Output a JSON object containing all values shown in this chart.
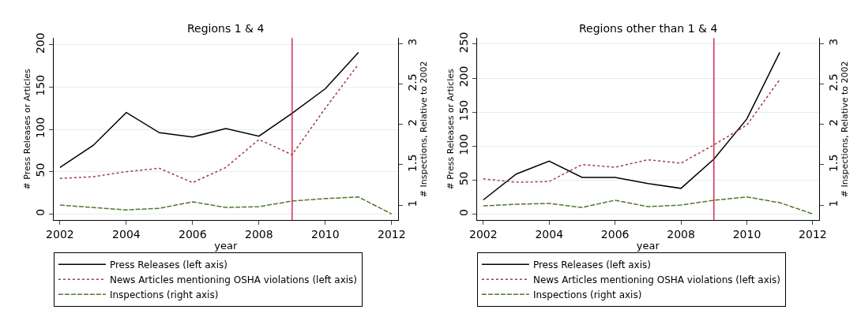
{
  "chart_data": [
    {
      "type": "line",
      "title": "Regions 1 & 4",
      "xlabel": "year",
      "ylabel": "# Press Releases or Articles",
      "y2label": "# Inspections, Relative to 2002",
      "x": [
        2002,
        2003,
        2004,
        2005,
        2006,
        2007,
        2008,
        2009,
        2010,
        2011,
        2012
      ],
      "series": [
        {
          "name": "Press Releases (left axis)",
          "color": "#000000",
          "line_style": "solid",
          "values": [
            55,
            81,
            120,
            96,
            91,
            101,
            92,
            119,
            148,
            191,
            null
          ]
        },
        {
          "name": "News Articles mentioning OSHA violations (left axis)",
          "color": "#a33a45",
          "line_style": "dotted",
          "values": [
            42,
            44,
            50,
            54,
            37,
            55,
            88,
            70,
            125,
            177,
            null
          ]
        },
        {
          "name": "Inspections (right axis)",
          "color": "#4f7a28",
          "line_style": "dashed",
          "axis": "y2",
          "values": [
            1.0,
            0.97,
            0.94,
            0.96,
            1.04,
            0.97,
            0.98,
            1.05,
            1.08,
            1.1,
            0.89
          ]
        }
      ],
      "xlim": [
        2001.81,
        2012.19
      ],
      "xticks": [
        2002,
        2004,
        2006,
        2008,
        2010,
        2012
      ],
      "ylim": [
        -7.6,
        208
      ],
      "yticks": [
        0,
        50,
        100,
        150,
        200
      ],
      "y2lim": [
        0.81,
        3.07
      ],
      "y2ticks": [
        1,
        1.5,
        2,
        2.5,
        3
      ],
      "ref_lines": [
        {
          "axis": "x",
          "value": 2009,
          "color": "#d0103a"
        }
      ],
      "grid": "y",
      "legend": "bottom",
      "marker": "none"
    },
    {
      "type": "line",
      "title": "Regions other than 1 & 4",
      "xlabel": "year",
      "ylabel": "# Press Releases or Articles",
      "y2label": "# Inspections, Relative to 2002",
      "x": [
        2002,
        2003,
        2004,
        2005,
        2006,
        2007,
        2008,
        2009,
        2010,
        2011,
        2012
      ],
      "series": [
        {
          "name": "Press Releases (left axis)",
          "color": "#000000",
          "line_style": "solid",
          "values": [
            21,
            59,
            78,
            54,
            54,
            45,
            38,
            81,
            140,
            238,
            null
          ]
        },
        {
          "name": "News Articles mentioning OSHA violations (left axis)",
          "color": "#a33a45",
          "line_style": "dotted",
          "values": [
            52,
            47,
            48,
            73,
            69,
            80,
            75,
            102,
            131,
            198,
            null
          ]
        },
        {
          "name": "Inspections (right axis)",
          "color": "#4f7a28",
          "line_style": "dashed",
          "axis": "y2",
          "values": [
            0.99,
            1.01,
            1.02,
            0.97,
            1.06,
            0.98,
            1.0,
            1.06,
            1.1,
            1.03,
            0.89
          ]
        }
      ],
      "xlim": [
        2001.81,
        2012.19
      ],
      "xticks": [
        2002,
        2004,
        2006,
        2008,
        2010,
        2012
      ],
      "ylim": [
        -9.1,
        259
      ],
      "yticks": [
        0,
        50,
        100,
        150,
        200,
        250
      ],
      "y2lim": [
        0.81,
        3.07
      ],
      "y2ticks": [
        1,
        1.5,
        2,
        2.5,
        3
      ],
      "ref_lines": [
        {
          "axis": "x",
          "value": 2009,
          "color": "#d0103a"
        }
      ],
      "grid": "y",
      "legend": "bottom",
      "marker": "none"
    }
  ]
}
